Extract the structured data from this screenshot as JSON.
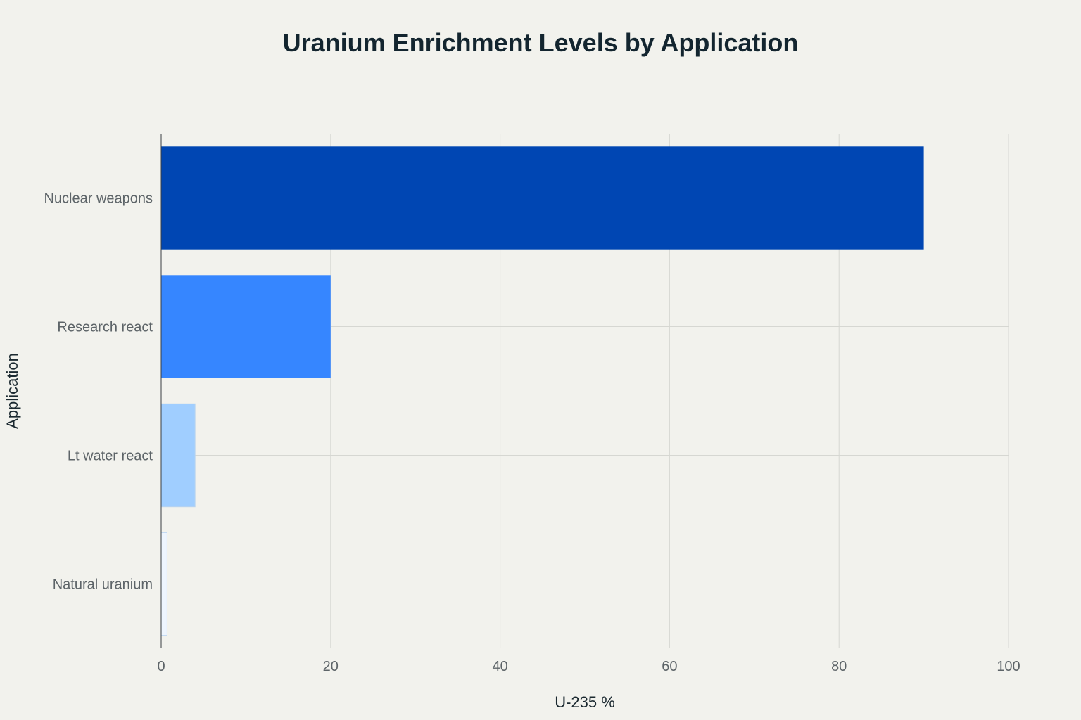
{
  "chart_data": {
    "type": "bar",
    "orientation": "horizontal",
    "title": "Uranium Enrichment Levels by Application",
    "xlabel": "U-235 %",
    "ylabel": "Application",
    "categories": [
      "Nuclear weapons",
      "Research react",
      "Lt water react",
      "Natural uranium"
    ],
    "values": [
      90,
      20,
      4,
      0.7
    ],
    "colors": [
      "#0046b3",
      "#3686ff",
      "#a0ceff",
      "#eef5fe"
    ],
    "xlim": [
      0,
      100
    ],
    "xticks": [
      0,
      20,
      40,
      60,
      80,
      100
    ],
    "grid": true,
    "legend": "none"
  }
}
